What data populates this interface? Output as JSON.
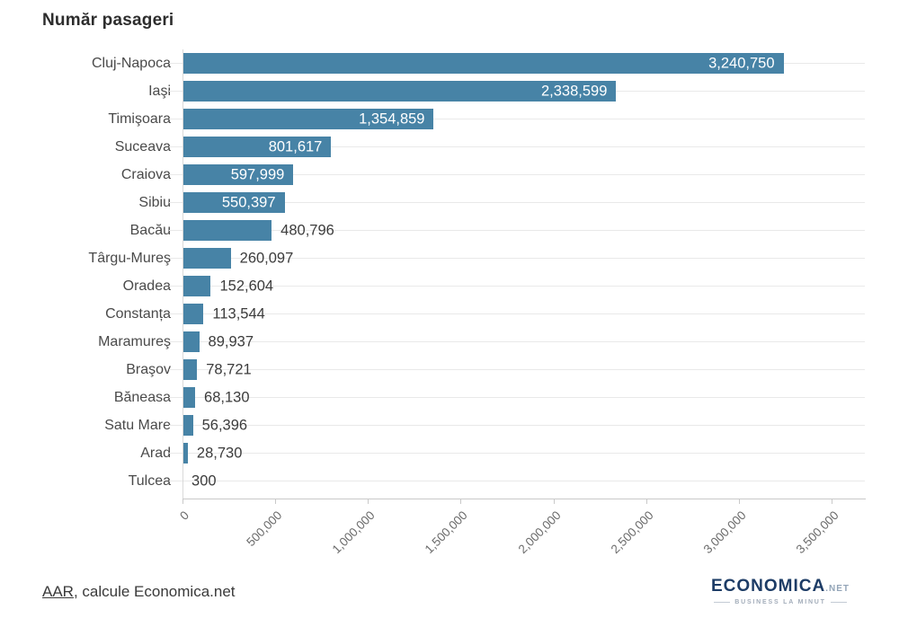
{
  "title": "Număr pasageri",
  "chart_data": {
    "type": "bar",
    "orientation": "horizontal",
    "title": "Număr pasageri",
    "categories": [
      "Cluj-Napoca",
      "Iaşi",
      "Timişoara",
      "Suceava",
      "Craiova",
      "Sibiu",
      "Bacău",
      "Târgu-Mureş",
      "Oradea",
      "Constanța",
      "Maramureş",
      "Braşov",
      "Băneasa",
      "Satu Mare",
      "Arad",
      "Tulcea"
    ],
    "values": [
      3240750,
      2338599,
      1354859,
      801617,
      597999,
      550397,
      480796,
      260097,
      152604,
      113544,
      89937,
      78721,
      68130,
      56396,
      28730,
      300
    ],
    "value_labels": [
      "3,240,750",
      "2,338,599",
      "1,354,859",
      "801,617",
      "597,999",
      "550,397",
      "480,796",
      "260,097",
      "152,604",
      "113,544",
      "89,937",
      "78,721",
      "68,130",
      "56,396",
      "28,730",
      "300"
    ],
    "x_ticks": [
      "0",
      "500,000",
      "1,000,000",
      "1,500,000",
      "2,000,000",
      "2,500,000",
      "3,000,000",
      "3,500,000"
    ],
    "x_tick_values": [
      0,
      500000,
      1000000,
      1500000,
      2000000,
      2500000,
      3000000,
      3500000
    ],
    "xlim": [
      0,
      3500000
    ],
    "xlabel": "",
    "ylabel": "",
    "legend": "none",
    "grid": "horizontal category gridlines only",
    "inside_label_threshold": 500000,
    "bar_color": "#4783a6",
    "inside_label_color": "#ffffff",
    "outside_label_color": "#3c3c3c"
  },
  "source": {
    "link_text": "AAR",
    "suffix": ", calcule Economica.net"
  },
  "logo": {
    "name": "ECONOMICA",
    "tld": ".NET",
    "tagline": "BUSINESS LA MINUT"
  },
  "colors": {
    "bar": "#4783a6",
    "grid": "#e9e9e9",
    "axis": "#c9c9c9",
    "title": "#2d2d2d",
    "category_label": "#4a4a4a",
    "tick_label": "#6b6b6b",
    "logo_navy": "#1d3c66",
    "logo_gray": "#93a5b8"
  }
}
